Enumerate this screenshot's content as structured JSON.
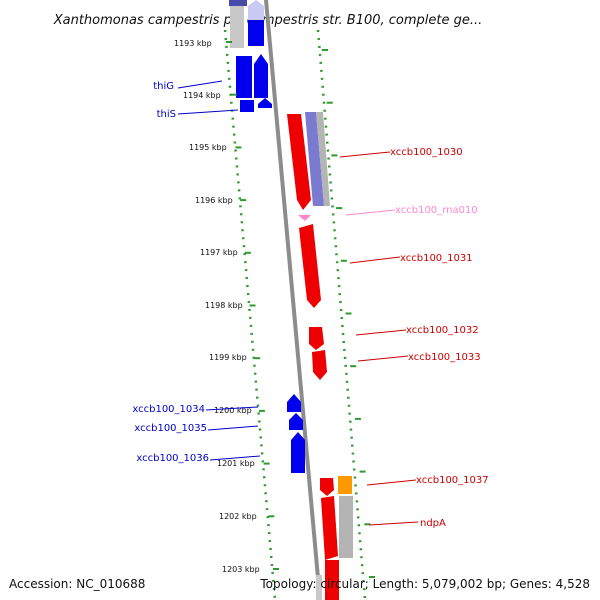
{
  "title": "Xanthomonas campestris pv. campestris str. B100, complete ge...",
  "footer": {
    "accession": "Accession: NC_010688",
    "summary": "Topology: circular; Length: 5,079,002 bp; Genes: 4,528"
  },
  "colors": {
    "forward_gene": "#ee0000",
    "reverse_gene": "#0000ee",
    "rna": "#ff88cc",
    "orange_feature": "#ff9900",
    "gray_feature": "#b4b4b4",
    "backbone": "#909090",
    "dots": "#2e9a2e"
  },
  "ticks": [
    {
      "label": "1193 kbp"
    },
    {
      "label": "1194 kbp"
    },
    {
      "label": "1195 kbp"
    },
    {
      "label": "1196 kbp"
    },
    {
      "label": "1197 kbp"
    },
    {
      "label": "1198 kbp"
    },
    {
      "label": "1199 kbp"
    },
    {
      "label": "1200 kbp"
    },
    {
      "label": "1201 kbp"
    },
    {
      "label": "1202 kbp"
    },
    {
      "label": "1203 kbp"
    }
  ],
  "gene_labels": [
    {
      "text": "thiG",
      "strand": "reverse"
    },
    {
      "text": "thiS",
      "strand": "reverse"
    },
    {
      "text": "xccb100_1030",
      "strand": "forward"
    },
    {
      "text": "xccb100_rna010",
      "strand": "rna"
    },
    {
      "text": "xccb100_1031",
      "strand": "forward"
    },
    {
      "text": "xccb100_1032",
      "strand": "forward"
    },
    {
      "text": "xccb100_1033",
      "strand": "forward"
    },
    {
      "text": "xccb100_1034",
      "strand": "reverse"
    },
    {
      "text": "xccb100_1035",
      "strand": "reverse"
    },
    {
      "text": "xccb100_1036",
      "strand": "reverse"
    },
    {
      "text": "xccb100_1037",
      "strand": "forward"
    },
    {
      "text": "ndpA",
      "strand": "forward"
    }
  ]
}
